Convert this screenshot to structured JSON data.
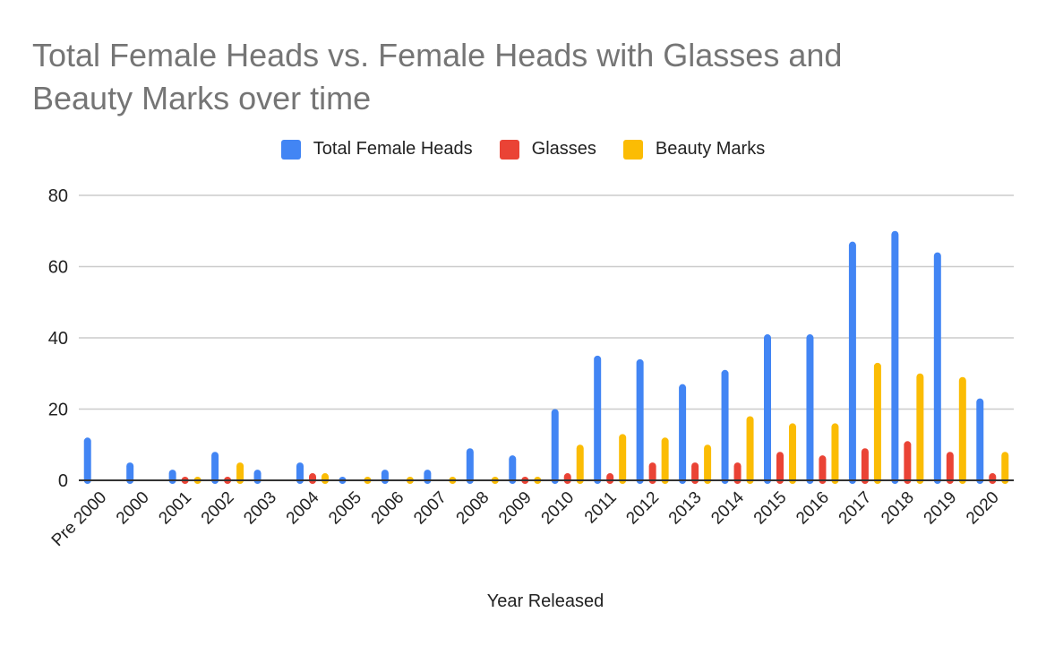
{
  "chart_data": {
    "type": "bar",
    "title": "Total Female Heads vs. Female Heads with Glasses and Beauty Marks over time",
    "xlabel": "Year Released",
    "ylabel": "",
    "ylim": [
      0,
      80
    ],
    "yticks": [
      0,
      20,
      40,
      60,
      80
    ],
    "grid": true,
    "legend_position": "top",
    "categories": [
      "Pre 2000",
      "2000",
      "2001",
      "2002",
      "2003",
      "2004",
      "2005",
      "2006",
      "2007",
      "2008",
      "2009",
      "2010",
      "2011",
      "2012",
      "2013",
      "2014",
      "2015",
      "2016",
      "2017",
      "2018",
      "2019",
      "2020"
    ],
    "series": [
      {
        "name": "Total Female Heads",
        "color": "#4285f4",
        "values": [
          12,
          5,
          3,
          8,
          3,
          5,
          0.5,
          3,
          3,
          9,
          7,
          20,
          35,
          34,
          27,
          31,
          41,
          41,
          67,
          70,
          64,
          23
        ]
      },
      {
        "name": "Glasses",
        "color": "#ea4335",
        "values": [
          0,
          0,
          0.5,
          0.5,
          0,
          2,
          0,
          0,
          0,
          0,
          0.5,
          2,
          2,
          5,
          5,
          5,
          8,
          7,
          9,
          11,
          8,
          2
        ]
      },
      {
        "name": "Beauty Marks",
        "color": "#fbbc04",
        "values": [
          0,
          0,
          0.5,
          5,
          0,
          2,
          0.5,
          0.5,
          0.5,
          0.5,
          0.5,
          10,
          13,
          12,
          10,
          18,
          16,
          16,
          33,
          30,
          29,
          8
        ]
      }
    ]
  },
  "title_line1": "Total Female Heads vs. Female Heads with Glasses and",
  "title_line2": "Beauty Marks over time",
  "legend": [
    "Total Female Heads",
    "Glasses",
    "Beauty Marks"
  ],
  "xlabel": "Year Released"
}
